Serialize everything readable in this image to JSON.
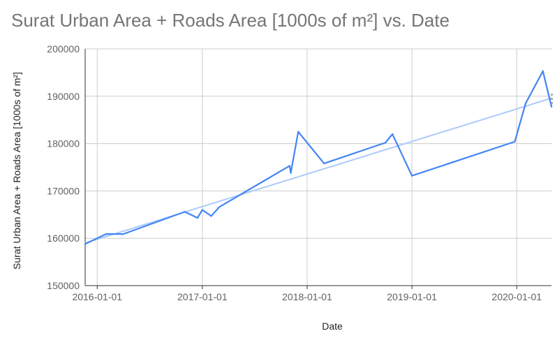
{
  "chart_data": {
    "type": "line",
    "title": "Surat Urban Area + Roads Area [1000s of m²] vs. Date",
    "xlabel": "Date",
    "ylabel": "Surat Urban Area + Roads Area [1000s of m²]",
    "x_ticks": [
      "2016-01-01",
      "2017-01-01",
      "2018-01-01",
      "2019-01-01",
      "2020-01-01"
    ],
    "y_ticks": [
      "150000",
      "160000",
      "170000",
      "180000",
      "190000",
      "200000"
    ],
    "xlim": [
      "2015-11-20",
      "2020-05-01"
    ],
    "ylim": [
      150000,
      200000
    ],
    "grid": true,
    "colors": {
      "series": "#4285f4",
      "trend": "#aecbfa",
      "grid": "#cccccc",
      "axis": "#333333"
    },
    "series": [
      {
        "values": [
          {
            "x": "2015-11-20",
            "y": 158800
          },
          {
            "x": "2016-02-01",
            "y": 160900
          },
          {
            "x": "2016-04-01",
            "y": 160900
          },
          {
            "x": "2016-11-01",
            "y": 165600
          },
          {
            "x": "2016-12-15",
            "y": 164300
          },
          {
            "x": "2017-01-01",
            "y": 166000
          },
          {
            "x": "2017-02-01",
            "y": 164700
          },
          {
            "x": "2017-03-01",
            "y": 166600
          },
          {
            "x": "2017-11-01",
            "y": 175300
          },
          {
            "x": "2017-11-05",
            "y": 173800
          },
          {
            "x": "2017-12-01",
            "y": 182500
          },
          {
            "x": "2018-03-01",
            "y": 175800
          },
          {
            "x": "2018-10-01",
            "y": 180200
          },
          {
            "x": "2018-10-25",
            "y": 182000
          },
          {
            "x": "2019-01-01",
            "y": 173200
          },
          {
            "x": "2019-12-25",
            "y": 180400
          },
          {
            "x": "2020-02-01",
            "y": 188500
          },
          {
            "x": "2020-04-01",
            "y": 195300
          },
          {
            "x": "2020-05-01",
            "y": 187800
          }
        ]
      },
      {
        "type": "trendline",
        "values": [
          {
            "x": "2015-11-20",
            "y": 159000
          },
          {
            "x": "2020-05-01",
            "y": 189600
          }
        ]
      }
    ]
  }
}
